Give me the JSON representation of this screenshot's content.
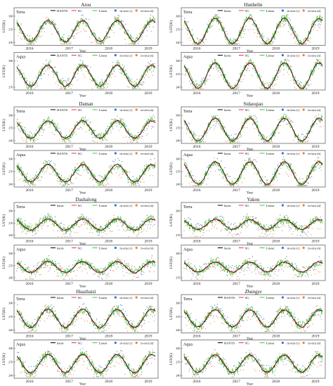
{
  "figure": {
    "sites": [
      {
        "name": "Arou",
        "name_style": "normal",
        "yticks_terra": [
          "300",
          "270",
          "250"
        ],
        "yticks_aqua": [
          "300",
          "270"
        ],
        "legend_style": "upper",
        "amp": 1.0
      },
      {
        "name": "Daman",
        "name_style": "normal",
        "yticks_terra": [
          "300",
          "270",
          "240"
        ],
        "yticks_aqua": [
          "300",
          "270",
          "240"
        ],
        "legend_style": "upper",
        "amp": 0.85
      },
      {
        "name": "Dashalong",
        "name_style": "normal",
        "yticks_terra": [
          "300",
          "270",
          "240"
        ],
        "yticks_aqua": [
          "300",
          "270",
          "240"
        ],
        "legend_style": "lower",
        "amp": 0.55
      },
      {
        "name": "Huazhaizi",
        "name_style": "normal",
        "yticks_terra": [
          "300",
          "270",
          "240"
        ],
        "yticks_aqua": [
          "300",
          "270",
          "240"
        ],
        "legend_style": "lower",
        "amp": 0.85
      },
      {
        "name": "Hunhelin",
        "name_style": "normal",
        "yticks_terra": [
          "300",
          "270",
          "240"
        ],
        "yticks_aqua": [
          "300",
          "270",
          "240"
        ],
        "legend_style": "lower",
        "amp": 1.2
      },
      {
        "name": "Sidaoqiao",
        "name_style": "normal",
        "yticks_terra": [
          "300",
          "270",
          "240"
        ],
        "yticks_aqua": [
          "300",
          "270",
          "240"
        ],
        "legend_style": "lower",
        "amp": 1.1
      },
      {
        "name": "Yakou",
        "name_style": "normal",
        "yticks_terra": [
          "300",
          "270"
        ],
        "yticks_aqua": [
          "300",
          "270"
        ],
        "legend_style": "lower",
        "amp": 0.5
      },
      {
        "name": "Zhangye",
        "name_style": "italic",
        "yticks_terra": [
          "300",
          "270",
          "240"
        ],
        "yticks_aqua": [
          "300",
          "270",
          "240"
        ],
        "legend_style": "upper",
        "amp": 0.8
      }
    ],
    "sensors": [
      "Terra",
      "Aqua"
    ],
    "ylabel": "LST(K)",
    "xlabel": "Year",
    "years": [
      "2016",
      "2017",
      "2018",
      "2019"
    ],
    "legend_upper": [
      "HANTS",
      "SG",
      "Linear",
      "in-situ (c)",
      "in-situ (n)"
    ],
    "legend_lower": [
      "hants",
      "SG",
      "Linear",
      "in-situ (c)",
      "in-situ (n)"
    ]
  },
  "colors": {
    "hants": "#000000",
    "sg": "#ff3030",
    "linear": "#33cc33",
    "insitu_c": "#3a6fd8",
    "insitu_n": "#e8803a"
  },
  "chart_data": {
    "type": "line",
    "note_series": [
      "HANTS",
      "SG",
      "Linear",
      "in-situ (c)",
      "in-situ (n)"
    ],
    "x_range": [
      "2015-10",
      "2019-12"
    ],
    "y_range_K": [
      240,
      310
    ],
    "grid": false,
    "legend_position": "top"
  }
}
